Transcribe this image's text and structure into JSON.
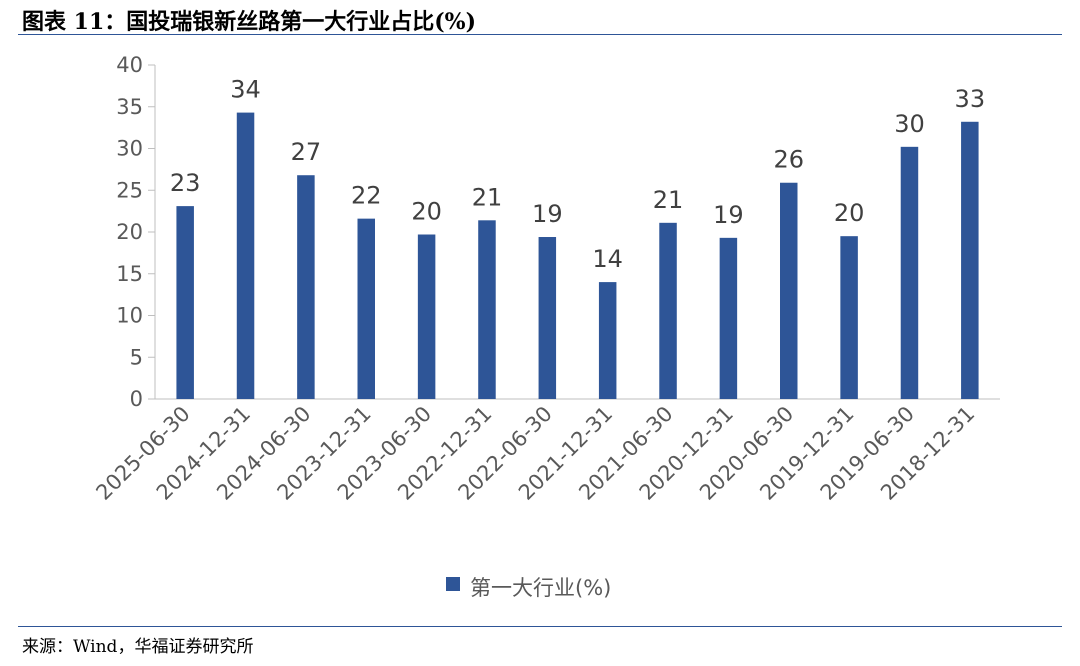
{
  "page": {
    "title": "图表 11：国投瑞银新丝路第一大行业占比(%)",
    "source": "来源：Wind，华福证券研究所",
    "accent_color": "#2e5597"
  },
  "chart_data": {
    "type": "bar",
    "categories": [
      "2025-06-30",
      "2024-12-31",
      "2024-06-30",
      "2023-12-31",
      "2023-06-30",
      "2022-12-31",
      "2022-06-30",
      "2021-12-31",
      "2021-06-30",
      "2020-12-31",
      "2020-06-30",
      "2019-12-31",
      "2019-06-30",
      "2018-12-31"
    ],
    "series": [
      {
        "name": "第一大行业(%)",
        "color": "#2e5597",
        "values": [
          23.1,
          34.3,
          26.8,
          21.6,
          19.7,
          21.4,
          19.4,
          14.0,
          21.1,
          19.3,
          25.9,
          19.5,
          30.2,
          33.2
        ],
        "labels": [
          "23",
          "34",
          "27",
          "22",
          "20",
          "21",
          "19",
          "14",
          "21",
          "19",
          "26",
          "20",
          "30",
          "33"
        ]
      }
    ],
    "ylim": [
      0,
      40
    ],
    "yticks": [
      0,
      5,
      10,
      15,
      20,
      25,
      30,
      35,
      40
    ],
    "xlabel": "",
    "ylabel": "",
    "grid": false,
    "legend_position": "bottom"
  }
}
